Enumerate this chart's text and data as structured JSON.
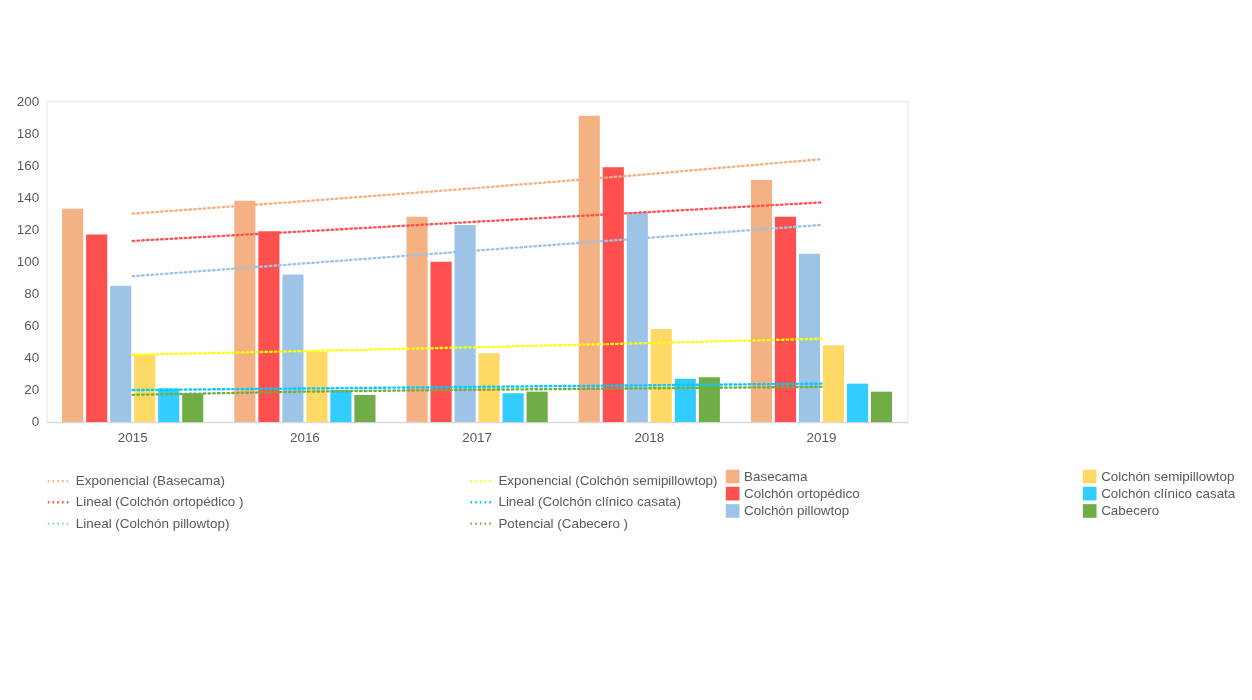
{
  "chart_data": {
    "type": "bar",
    "categories": [
      "2015",
      "2016",
      "2017",
      "2018",
      "2019"
    ],
    "ylim": [
      0,
      200
    ],
    "yticks": [
      0,
      20,
      40,
      60,
      80,
      100,
      120,
      140,
      160,
      180,
      200
    ],
    "grid": false,
    "legend": "bottom",
    "series": [
      {
        "name": "Basecama",
        "color": "#f4b183",
        "values": [
          133,
          138,
          128,
          191,
          151
        ]
      },
      {
        "name": "Colchón ortopédico",
        "color": "#ff5050",
        "values": [
          117,
          119,
          100,
          159,
          128
        ]
      },
      {
        "name": "Colchón pillowtop",
        "color": "#9dc3e6",
        "values": [
          85,
          92,
          123,
          131,
          105
        ]
      },
      {
        "name": "Colchón semipillowtop",
        "color": "#ffd966",
        "values": [
          42,
          44,
          43,
          58,
          48
        ]
      },
      {
        "name": "Colchón clínico casata",
        "color": "#33ccff",
        "values": [
          21,
          20,
          18,
          27,
          24
        ]
      },
      {
        "name": "Cabecero",
        "color": "#70ad47",
        "values": [
          18,
          17,
          19,
          28,
          19
        ]
      },
      {
        "name": "Exponencial (Basecama)",
        "type": "line",
        "line_style": "dotted",
        "color": "#f4b183",
        "values": [
          130,
          137.8,
          146,
          154.7,
          164
        ]
      },
      {
        "name": "Lineal (Colchón ortopédico )",
        "type": "line",
        "line_style": "dotted",
        "color": "#ff5050",
        "values": [
          113,
          119,
          125,
          131,
          137
        ]
      },
      {
        "name": "Lineal (Colchón pillowtop)",
        "type": "line",
        "line_style": "dotted",
        "color": "#9dc3e6",
        "values": [
          91,
          99,
          107,
          115,
          123
        ]
      },
      {
        "name": "Exponencial (Colchón semipillowtop)",
        "type": "line",
        "line_style": "dotted",
        "color": "#ffff00",
        "values": [
          42,
          44.3,
          46.7,
          49.3,
          52
        ]
      },
      {
        "name": "Lineal (Colchón clínico casata)",
        "type": "line",
        "line_style": "dotted",
        "color": "#00ccff",
        "values": [
          20,
          21,
          22,
          23,
          24
        ]
      },
      {
        "name": "Potencial (Cabecero )",
        "type": "line",
        "line_style": "dotted",
        "color": "#70ad47",
        "values": [
          17,
          19,
          20.2,
          21.1,
          22
        ]
      }
    ]
  }
}
